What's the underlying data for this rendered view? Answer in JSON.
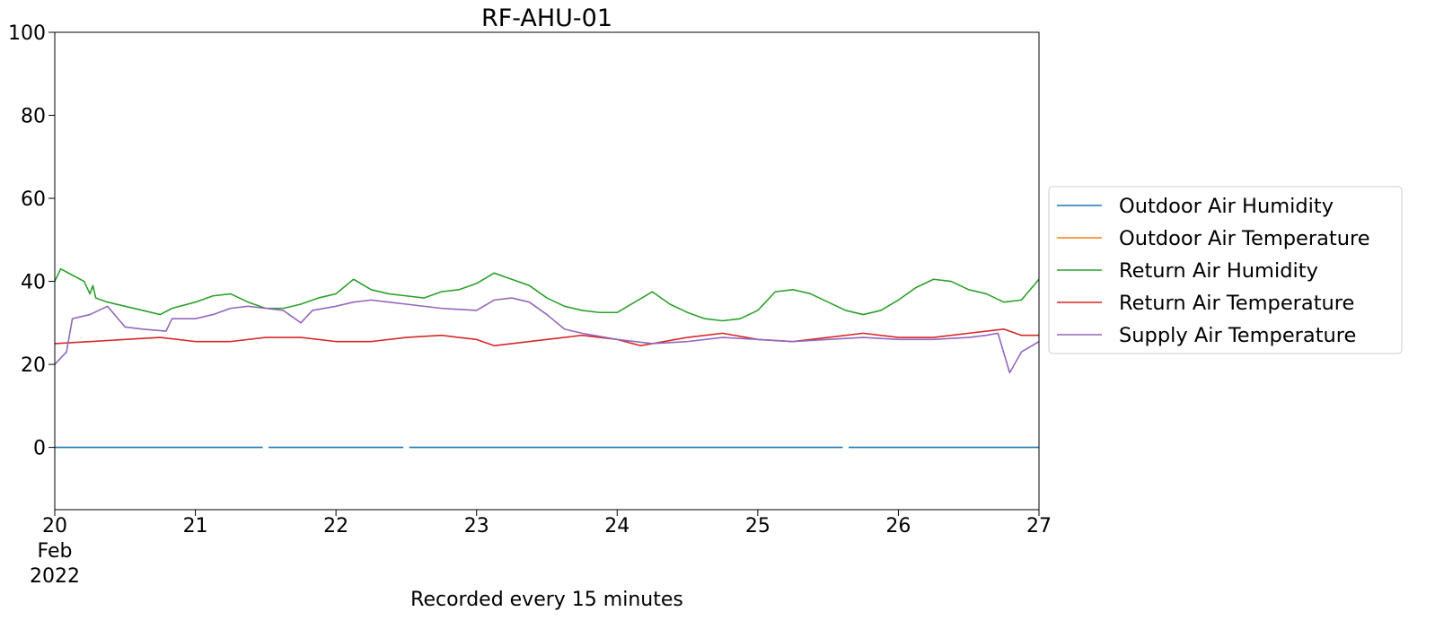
{
  "chart_data": {
    "type": "line",
    "title": "RF-AHU-01",
    "xlabel": "Recorded every 15 minutes",
    "ylabel": "",
    "ylim": [
      -15,
      100
    ],
    "yticks": [
      0,
      20,
      40,
      60,
      80,
      100
    ],
    "xlim": [
      "2022-02-20",
      "2022-02-27"
    ],
    "xticks": [
      {
        "x": "2022-02-20",
        "lines": [
          "20",
          "Feb",
          "2022"
        ]
      },
      {
        "x": "2022-02-21",
        "lines": [
          "21"
        ]
      },
      {
        "x": "2022-02-22",
        "lines": [
          "22"
        ]
      },
      {
        "x": "2022-02-23",
        "lines": [
          "23"
        ]
      },
      {
        "x": "2022-02-24",
        "lines": [
          "24"
        ]
      },
      {
        "x": "2022-02-25",
        "lines": [
          "25"
        ]
      },
      {
        "x": "2022-02-26",
        "lines": [
          "26"
        ]
      },
      {
        "x": "2022-02-27",
        "lines": [
          "27"
        ]
      }
    ],
    "grid": false,
    "legend_position": "right, outside plot",
    "series": [
      {
        "name": "Outdoor Air Humidity",
        "color": "#1f77b4",
        "points": [
          [
            "2022-02-20 00:00",
            0
          ],
          [
            "2022-02-21 11:30",
            0
          ],
          [
            "2022-02-21 12:00",
            null
          ],
          [
            "2022-02-21 12:30",
            0
          ],
          [
            "2022-02-22 11:30",
            0
          ],
          [
            "2022-02-22 12:00",
            null
          ],
          [
            "2022-02-22 12:30",
            0
          ],
          [
            "2022-02-25 14:30",
            0
          ],
          [
            "2022-02-25 15:00",
            null
          ],
          [
            "2022-02-25 15:30",
            0
          ],
          [
            "2022-02-27 00:00",
            0
          ]
        ]
      },
      {
        "name": "Outdoor Air Temperature",
        "color": "#ff7f0e",
        "points": []
      },
      {
        "name": "Return Air Humidity",
        "color": "#2ca02c",
        "points": [
          [
            "2022-02-20 00:00",
            40
          ],
          [
            "2022-02-20 01:00",
            43
          ],
          [
            "2022-02-20 03:00",
            41.5
          ],
          [
            "2022-02-20 05:00",
            40
          ],
          [
            "2022-02-20 06:00",
            37
          ],
          [
            "2022-02-20 06:30",
            39
          ],
          [
            "2022-02-20 07:00",
            36
          ],
          [
            "2022-02-20 09:00",
            35
          ],
          [
            "2022-02-20 12:00",
            34
          ],
          [
            "2022-02-20 15:00",
            33
          ],
          [
            "2022-02-20 18:00",
            32
          ],
          [
            "2022-02-20 20:00",
            33.5
          ],
          [
            "2022-02-21 00:00",
            35
          ],
          [
            "2022-02-21 03:00",
            36.5
          ],
          [
            "2022-02-21 06:00",
            37
          ],
          [
            "2022-02-21 09:00",
            35
          ],
          [
            "2022-02-21 12:00",
            33.5
          ],
          [
            "2022-02-21 15:00",
            33.5
          ],
          [
            "2022-02-21 18:00",
            34.5
          ],
          [
            "2022-02-21 21:00",
            36
          ],
          [
            "2022-02-22 00:00",
            37
          ],
          [
            "2022-02-22 03:00",
            40.5
          ],
          [
            "2022-02-22 06:00",
            38
          ],
          [
            "2022-02-22 09:00",
            37
          ],
          [
            "2022-02-22 12:00",
            36.5
          ],
          [
            "2022-02-22 15:00",
            36
          ],
          [
            "2022-02-22 18:00",
            37.5
          ],
          [
            "2022-02-22 21:00",
            38
          ],
          [
            "2022-02-23 00:00",
            39.5
          ],
          [
            "2022-02-23 03:00",
            42
          ],
          [
            "2022-02-23 06:00",
            40.5
          ],
          [
            "2022-02-23 09:00",
            39
          ],
          [
            "2022-02-23 12:00",
            36
          ],
          [
            "2022-02-23 15:00",
            34
          ],
          [
            "2022-02-23 18:00",
            33
          ],
          [
            "2022-02-23 21:00",
            32.5
          ],
          [
            "2022-02-24 00:00",
            32.5
          ],
          [
            "2022-02-24 03:00",
            35
          ],
          [
            "2022-02-24 06:00",
            37.5
          ],
          [
            "2022-02-24 09:00",
            34.5
          ],
          [
            "2022-02-24 12:00",
            32.5
          ],
          [
            "2022-02-24 15:00",
            31
          ],
          [
            "2022-02-24 18:00",
            30.5
          ],
          [
            "2022-02-24 21:00",
            31
          ],
          [
            "2022-02-25 00:00",
            33
          ],
          [
            "2022-02-25 03:00",
            37.5
          ],
          [
            "2022-02-25 06:00",
            38
          ],
          [
            "2022-02-25 09:00",
            37
          ],
          [
            "2022-02-25 12:00",
            35
          ],
          [
            "2022-02-25 15:00",
            33
          ],
          [
            "2022-02-25 18:00",
            32
          ],
          [
            "2022-02-25 21:00",
            33
          ],
          [
            "2022-02-26 00:00",
            35.5
          ],
          [
            "2022-02-26 03:00",
            38.5
          ],
          [
            "2022-02-26 06:00",
            40.5
          ],
          [
            "2022-02-26 09:00",
            40
          ],
          [
            "2022-02-26 12:00",
            38
          ],
          [
            "2022-02-26 15:00",
            37
          ],
          [
            "2022-02-26 18:00",
            35
          ],
          [
            "2022-02-26 21:00",
            35.5
          ],
          [
            "2022-02-27 00:00",
            40.5
          ]
        ]
      },
      {
        "name": "Return Air Temperature",
        "color": "#d62728",
        "points": [
          [
            "2022-02-20 00:00",
            25
          ],
          [
            "2022-02-20 06:00",
            25.5
          ],
          [
            "2022-02-20 12:00",
            26
          ],
          [
            "2022-02-20 18:00",
            26.5
          ],
          [
            "2022-02-21 00:00",
            25.5
          ],
          [
            "2022-02-21 06:00",
            25.5
          ],
          [
            "2022-02-21 12:00",
            26.5
          ],
          [
            "2022-02-21 18:00",
            26.5
          ],
          [
            "2022-02-22 00:00",
            25.5
          ],
          [
            "2022-02-22 06:00",
            25.5
          ],
          [
            "2022-02-22 12:00",
            26.5
          ],
          [
            "2022-02-22 18:00",
            27
          ],
          [
            "2022-02-23 00:00",
            26
          ],
          [
            "2022-02-23 03:00",
            24.5
          ],
          [
            "2022-02-23 06:00",
            25
          ],
          [
            "2022-02-23 12:00",
            26
          ],
          [
            "2022-02-23 18:00",
            27
          ],
          [
            "2022-02-24 00:00",
            26
          ],
          [
            "2022-02-24 04:00",
            24.5
          ],
          [
            "2022-02-24 06:00",
            25
          ],
          [
            "2022-02-24 12:00",
            26.5
          ],
          [
            "2022-02-24 18:00",
            27.5
          ],
          [
            "2022-02-25 00:00",
            26
          ],
          [
            "2022-02-25 06:00",
            25.5
          ],
          [
            "2022-02-25 12:00",
            26.5
          ],
          [
            "2022-02-25 18:00",
            27.5
          ],
          [
            "2022-02-26 00:00",
            26.5
          ],
          [
            "2022-02-26 06:00",
            26.5
          ],
          [
            "2022-02-26 12:00",
            27.5
          ],
          [
            "2022-02-26 18:00",
            28.5
          ],
          [
            "2022-02-26 21:00",
            27
          ],
          [
            "2022-02-27 00:00",
            27
          ]
        ]
      },
      {
        "name": "Supply Air Temperature",
        "color": "#9467bd",
        "points": [
          [
            "2022-02-20 00:00",
            20
          ],
          [
            "2022-02-20 02:00",
            23
          ],
          [
            "2022-02-20 03:00",
            31
          ],
          [
            "2022-02-20 06:00",
            32
          ],
          [
            "2022-02-20 09:00",
            34
          ],
          [
            "2022-02-20 12:00",
            29
          ],
          [
            "2022-02-20 15:00",
            28.5
          ],
          [
            "2022-02-20 19:00",
            28
          ],
          [
            "2022-02-20 20:00",
            31
          ],
          [
            "2022-02-21 00:00",
            31
          ],
          [
            "2022-02-21 03:00",
            32
          ],
          [
            "2022-02-21 06:00",
            33.5
          ],
          [
            "2022-02-21 09:00",
            34
          ],
          [
            "2022-02-21 12:00",
            33.5
          ],
          [
            "2022-02-21 15:00",
            33
          ],
          [
            "2022-02-21 18:00",
            30
          ],
          [
            "2022-02-21 20:00",
            33
          ],
          [
            "2022-02-22 00:00",
            34
          ],
          [
            "2022-02-22 03:00",
            35
          ],
          [
            "2022-02-22 06:00",
            35.5
          ],
          [
            "2022-02-22 09:00",
            35
          ],
          [
            "2022-02-22 12:00",
            34.5
          ],
          [
            "2022-02-22 18:00",
            33.5
          ],
          [
            "2022-02-23 00:00",
            33
          ],
          [
            "2022-02-23 03:00",
            35.5
          ],
          [
            "2022-02-23 06:00",
            36
          ],
          [
            "2022-02-23 09:00",
            35
          ],
          [
            "2022-02-23 12:00",
            32
          ],
          [
            "2022-02-23 15:00",
            28.5
          ],
          [
            "2022-02-23 18:00",
            27.5
          ],
          [
            "2022-02-24 00:00",
            26
          ],
          [
            "2022-02-24 06:00",
            25
          ],
          [
            "2022-02-24 12:00",
            25.5
          ],
          [
            "2022-02-24 18:00",
            26.5
          ],
          [
            "2022-02-25 00:00",
            26
          ],
          [
            "2022-02-25 06:00",
            25.5
          ],
          [
            "2022-02-25 12:00",
            26
          ],
          [
            "2022-02-25 18:00",
            26.5
          ],
          [
            "2022-02-26 00:00",
            26
          ],
          [
            "2022-02-26 06:00",
            26
          ],
          [
            "2022-02-26 12:00",
            26.5
          ],
          [
            "2022-02-26 15:00",
            27
          ],
          [
            "2022-02-26 17:00",
            27.5
          ],
          [
            "2022-02-26 19:00",
            18
          ],
          [
            "2022-02-26 21:00",
            23
          ],
          [
            "2022-02-27 00:00",
            25.5
          ]
        ]
      }
    ]
  }
}
